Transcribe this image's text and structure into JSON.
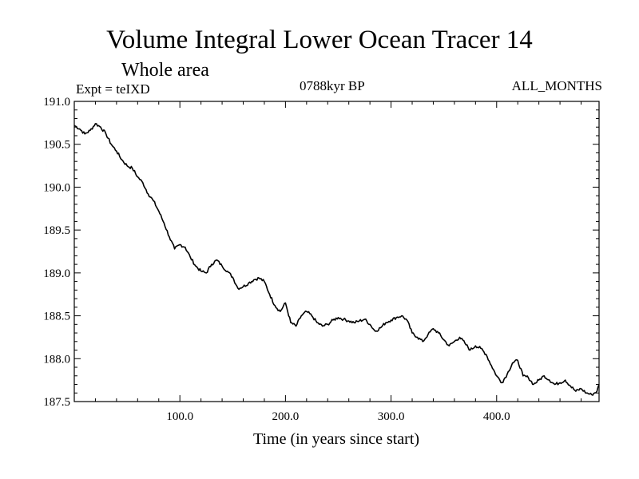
{
  "header": {
    "title": "Volume Integral Lower Ocean Tracer 14",
    "subtitle": "Whole area",
    "expt_label": "Expt = teIXD",
    "period_label": "0788kyr BP",
    "months_label": "ALL_MONTHS"
  },
  "chart_data": {
    "type": "line",
    "title": "Volume Integral Lower Ocean Tracer 14",
    "xlabel": "Time (in years since start)",
    "ylabel": "",
    "xlim": [
      0,
      497
    ],
    "ylim": [
      187.5,
      191.0
    ],
    "x_ticks": [
      100,
      200,
      300,
      400
    ],
    "x_tick_labels": [
      "100.0",
      "200.0",
      "300.0",
      "400.0"
    ],
    "y_ticks": [
      187.5,
      188.0,
      188.5,
      189.0,
      189.5,
      190.0,
      190.5,
      191.0
    ],
    "y_tick_labels": [
      "187.5",
      "188.0",
      "188.5",
      "189.0",
      "189.5",
      "190.0",
      "190.5",
      "191.0"
    ],
    "grid": false,
    "series": [
      {
        "name": "Tracer 14",
        "x": [
          0,
          5,
          10,
          15,
          20,
          25,
          30,
          35,
          40,
          45,
          50,
          55,
          60,
          65,
          70,
          75,
          80,
          85,
          90,
          95,
          100,
          105,
          110,
          115,
          120,
          125,
          130,
          135,
          140,
          145,
          150,
          155,
          160,
          165,
          170,
          175,
          180,
          185,
          190,
          195,
          200,
          205,
          210,
          215,
          220,
          225,
          230,
          235,
          240,
          245,
          250,
          255,
          260,
          265,
          270,
          275,
          280,
          285,
          290,
          295,
          300,
          305,
          310,
          315,
          320,
          325,
          330,
          335,
          340,
          345,
          350,
          355,
          360,
          365,
          370,
          375,
          380,
          385,
          390,
          395,
          400,
          405,
          410,
          415,
          420,
          425,
          430,
          435,
          440,
          445,
          450,
          455,
          460,
          465,
          470,
          475,
          480,
          485,
          490,
          495,
          497
        ],
        "values": [
          190.72,
          190.68,
          190.62,
          190.66,
          190.74,
          190.7,
          190.62,
          190.5,
          190.42,
          190.32,
          190.25,
          190.22,
          190.12,
          190.05,
          189.92,
          189.84,
          189.72,
          189.58,
          189.42,
          189.28,
          189.33,
          189.3,
          189.18,
          189.08,
          189.02,
          189.0,
          189.1,
          189.15,
          189.08,
          189.02,
          188.95,
          188.82,
          188.84,
          188.88,
          188.92,
          188.94,
          188.9,
          188.75,
          188.62,
          188.55,
          188.65,
          188.42,
          188.38,
          188.5,
          188.55,
          188.5,
          188.42,
          188.38,
          188.4,
          188.45,
          188.48,
          188.46,
          188.44,
          188.42,
          188.44,
          188.46,
          188.4,
          188.32,
          188.36,
          188.42,
          188.45,
          188.48,
          188.5,
          188.45,
          188.3,
          188.25,
          188.2,
          188.28,
          188.35,
          188.3,
          188.22,
          188.15,
          188.2,
          188.25,
          188.18,
          188.1,
          188.15,
          188.12,
          188.05,
          187.92,
          187.8,
          187.72,
          187.82,
          187.95,
          187.98,
          187.8,
          187.78,
          187.7,
          187.75,
          187.8,
          187.75,
          187.7,
          187.72,
          187.75,
          187.68,
          187.62,
          187.65,
          187.6,
          187.58,
          187.62,
          187.7
        ]
      }
    ]
  }
}
